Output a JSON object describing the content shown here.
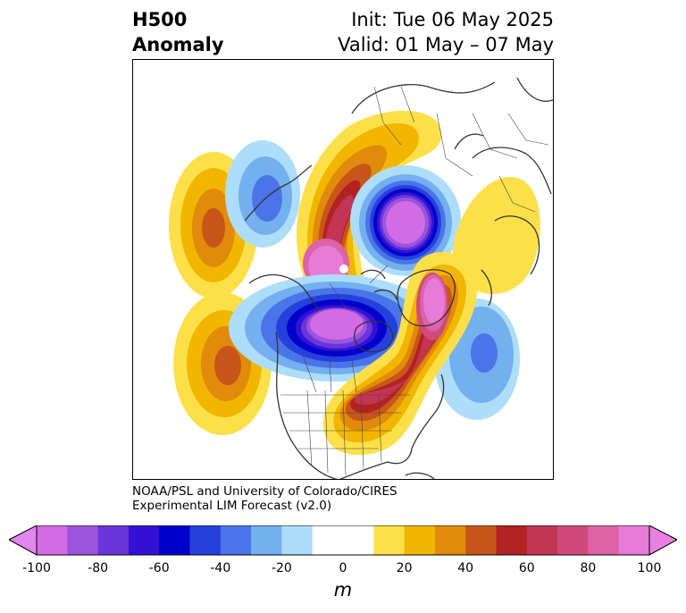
{
  "title": {
    "left_line1": "H500",
    "left_line2": "Anomaly",
    "right_line1": "Init: Tue 06 May 2025",
    "right_line2": "Valid: 01 May – 07 May"
  },
  "credit": {
    "line1": "NOAA/PSL and University of Colorado/CIRES",
    "line2": "Experimental LIM Forecast (v2.0)"
  },
  "colorbar": {
    "unit": "m",
    "ticks": [
      "-100",
      "-80",
      "-60",
      "-40",
      "-20",
      "0",
      "20",
      "40",
      "60",
      "80",
      "100"
    ],
    "colors": [
      "#d46be6",
      "#9b55dd",
      "#6a35d9",
      "#3312d4",
      "#0000cc",
      "#2541dd",
      "#4b74e8",
      "#74aff0",
      "#addef9",
      "#ffffff",
      "#ffffff",
      "#fde049",
      "#f2b600",
      "#e08b0c",
      "#c8551a",
      "#b22222",
      "#c23553",
      "#d04a7c",
      "#dd62a8",
      "#e87ad8"
    ],
    "under_color": "#e286f1",
    "over_color": "#ea7fe3"
  },
  "map": {
    "projection": "north-polar-stereographic",
    "features": [
      "H500 anomaly contours",
      "coastlines",
      "country borders",
      "US state borders"
    ]
  }
}
